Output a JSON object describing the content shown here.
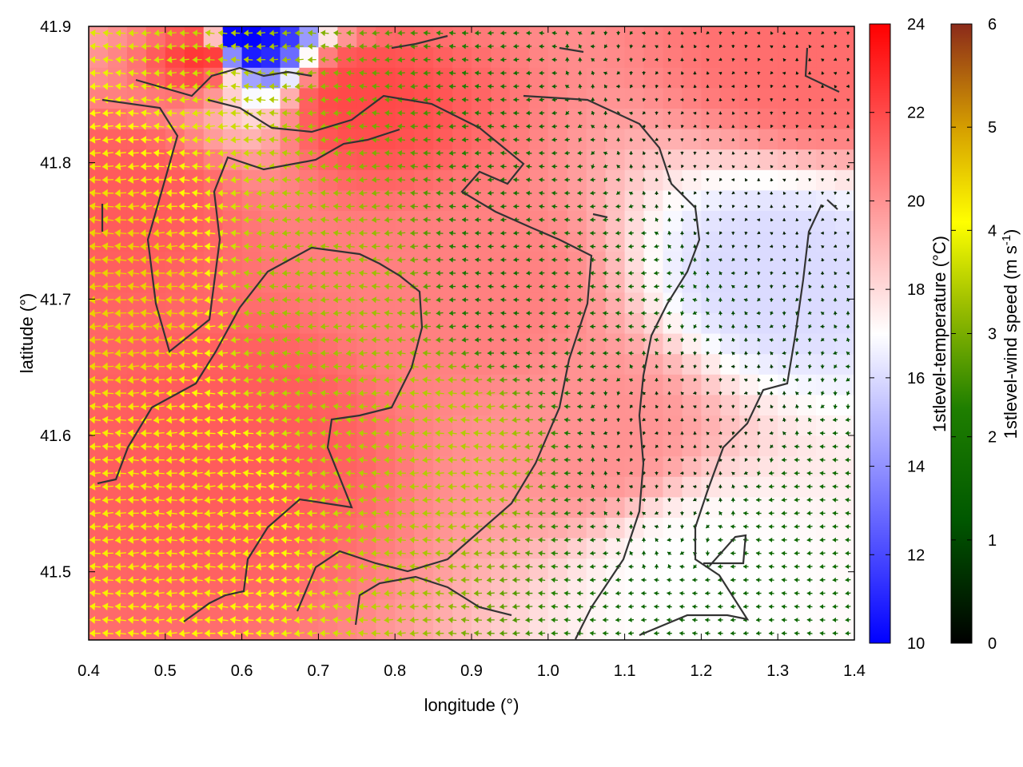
{
  "chart_data": {
    "type": "heatmap",
    "title": "",
    "xlabel": "longitude (°)",
    "ylabel": "latitude (°)",
    "xlim": [
      0.4,
      1.4
    ],
    "ylim": [
      41.45,
      41.9
    ],
    "x_ticks": [
      "0.4",
      "0.5",
      "0.6",
      "0.7",
      "0.8",
      "0.9",
      "1.0",
      "1.1",
      "1.2",
      "1.3",
      "1.4"
    ],
    "y_ticks": [
      "41.5",
      "41.6",
      "41.7",
      "41.8",
      "41.9"
    ],
    "grid": false,
    "legend": "none",
    "colorbars": [
      {
        "label": "1stlevel-temperature (°C)",
        "range": [
          10,
          24
        ],
        "ticks": [
          "10",
          "12",
          "14",
          "16",
          "18",
          "20",
          "22",
          "24"
        ],
        "colors": [
          "#0000ff",
          "#ffffff",
          "#ff0000"
        ]
      },
      {
        "label_main": "1stlevel-wind speed (m s",
        "label_sup": "-1",
        "label_end": ")",
        "range": [
          0,
          6
        ],
        "ticks": [
          "0",
          "1",
          "2",
          "3",
          "4",
          "5",
          "6"
        ],
        "colors": [
          "#000000",
          "#005800",
          "#1f7f00",
          "#9fc000",
          "#ffff00",
          "#d6a000",
          "#8b2a1a"
        ]
      }
    ],
    "temperature_field": {
      "description_units": "°C",
      "points": [
        {
          "lon": 0.45,
          "lat": 41.78,
          "t": 21.5
        },
        {
          "lon": 0.6,
          "lat": 41.6,
          "t": 21.5
        },
        {
          "lon": 0.55,
          "lat": 41.88,
          "t": 22.5
        },
        {
          "lon": 0.75,
          "lat": 41.85,
          "t": 22
        },
        {
          "lon": 0.9,
          "lat": 41.7,
          "t": 20.5
        },
        {
          "lon": 1.05,
          "lat": 41.6,
          "t": 20
        },
        {
          "lon": 1.3,
          "lat": 41.72,
          "t": 16
        },
        {
          "lon": 1.2,
          "lat": 41.5,
          "t": 17
        },
        {
          "lon": 1.35,
          "lat": 41.88,
          "t": 21
        },
        {
          "lon": 0.6,
          "lat": 41.89,
          "t": 10
        }
      ]
    },
    "wind_direction": "mostly from the east (arrows pointing west) over the western half; weak and variable over the eastern half",
    "wind_speed_field": {
      "units": "m s-1",
      "points": [
        {
          "lon": 0.45,
          "lat": 41.7,
          "ws": 4.5
        },
        {
          "lon": 0.5,
          "lat": 41.55,
          "ws": 4.2
        },
        {
          "lon": 0.7,
          "lat": 41.7,
          "ws": 3.0
        },
        {
          "lon": 0.85,
          "lat": 41.6,
          "ws": 3.2
        },
        {
          "lon": 1.0,
          "lat": 41.7,
          "ws": 1.5
        },
        {
          "lon": 1.2,
          "lat": 41.6,
          "ws": 0.5
        },
        {
          "lon": 1.3,
          "lat": 41.8,
          "ws": 0.3
        },
        {
          "lon": 1.35,
          "lat": 41.55,
          "ws": 1.5
        }
      ]
    }
  }
}
